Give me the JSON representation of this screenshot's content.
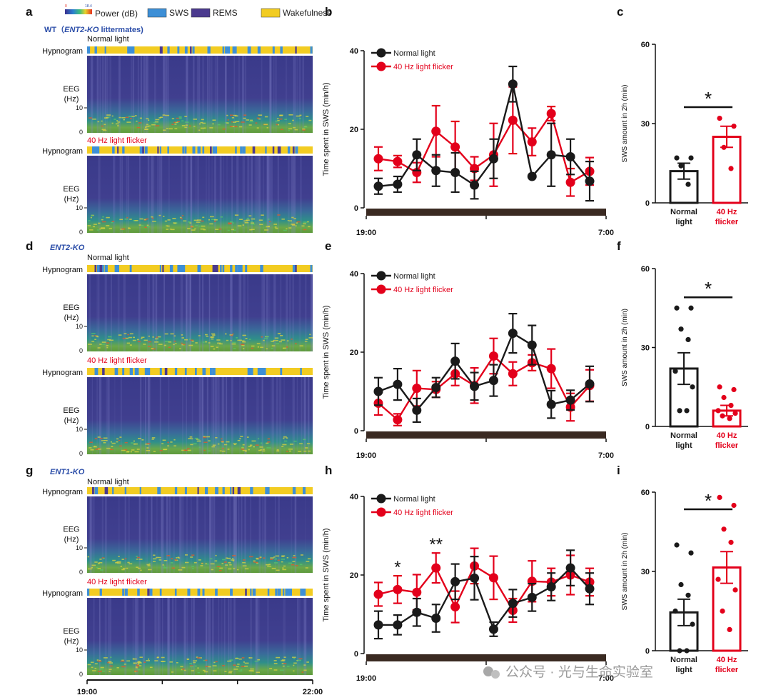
{
  "legend": {
    "power_label": "Power (dB)",
    "scale_min": "0",
    "scale_max": "18.4",
    "states": [
      {
        "name": "SWS",
        "color": "#3d8fd6"
      },
      {
        "name": "REMS",
        "color": "#4b3a8e"
      },
      {
        "name": "Wakefulness",
        "color": "#f2cc22"
      }
    ]
  },
  "colors": {
    "normal": "#1a1a1a",
    "flicker": "#e3001b",
    "group_label": "#2b4da8",
    "spectro_bg": "#3b3b8c",
    "axis_bar": "#3a2a22"
  },
  "row_labels": {
    "hypnogram": "Hypnogram",
    "eeg_line1": "EEG",
    "eeg_line2": "(Hz)",
    "tick_10": "10",
    "tick_0": "0"
  },
  "spectro_time": {
    "start": "19:00",
    "end": "22:00"
  },
  "groups": [
    {
      "panel": "a",
      "title_prefix": "WT（",
      "title_italic": "ENT2-KO",
      "title_suffix": " littermates)",
      "conditions": [
        {
          "label": "Normal light",
          "sws_fraction": 0.22
        },
        {
          "label": "40 Hz light flicker",
          "sws_fraction": 0.35
        }
      ]
    },
    {
      "panel": "d",
      "title_prefix": "",
      "title_italic": "ENT2-KO",
      "title_suffix": "",
      "conditions": [
        {
          "label": "Normal light",
          "sws_fraction": 0.3
        },
        {
          "label": "40 Hz light flicker",
          "sws_fraction": 0.25
        }
      ]
    },
    {
      "panel": "g",
      "title_prefix": "",
      "title_italic": "ENT1-KO",
      "title_suffix": "",
      "conditions": [
        {
          "label": "Normal light",
          "sws_fraction": 0.2
        },
        {
          "label": "40 Hz light flicker",
          "sws_fraction": 0.3
        }
      ]
    }
  ],
  "chart_data": [
    {
      "panel": "b",
      "type": "line",
      "ylabel": "Time spent in SWS (min/h)",
      "ylim": [
        0,
        40
      ],
      "yticks": [
        "0",
        "20",
        "40"
      ],
      "x_start_label": "19:00",
      "x_end_label": "7:00",
      "series": [
        {
          "name": "Normal light",
          "values": [
            5.5,
            6,
            13.5,
            9.5,
            9,
            5.8,
            12.5,
            31.5,
            8,
            13.5,
            13,
            6.8
          ],
          "errors": [
            2,
            2,
            4,
            4,
            5,
            3.5,
            5,
            4.5,
            0,
            8,
            4.5,
            5
          ]
        },
        {
          "name": "40 Hz light flicker",
          "values": [
            12.5,
            11.8,
            9,
            19.5,
            15.5,
            10,
            13.5,
            22.3,
            16.8,
            24,
            6.5,
            9.3
          ],
          "errors": [
            3,
            1.5,
            2.5,
            6.5,
            6.5,
            3,
            8,
            8.5,
            3.5,
            1.8,
            3.5,
            3.5
          ]
        }
      ],
      "annotations": []
    },
    {
      "panel": "c",
      "type": "bar",
      "ylabel": "SWS amount in 2h (min)",
      "ylim": [
        0,
        60
      ],
      "yticks": [
        "0",
        "30",
        "60"
      ],
      "categories": [
        "Normal light",
        "40 Hz flicker"
      ],
      "values": [
        12,
        25
      ],
      "errors": [
        3,
        4
      ],
      "points": [
        [
          17,
          17,
          14,
          7
        ],
        [
          32,
          29,
          21,
          13
        ]
      ],
      "significance": "*"
    },
    {
      "panel": "e",
      "type": "line",
      "ylabel": "Time spent in SWS (min/h)",
      "ylim": [
        0,
        40
      ],
      "yticks": [
        "0",
        "20",
        "40"
      ],
      "x_start_label": "19:00",
      "x_end_label": "7:00",
      "series": [
        {
          "name": "Normal light",
          "values": [
            10,
            11.8,
            5.2,
            11,
            17.7,
            11.3,
            12.8,
            24.8,
            21.8,
            6.7,
            7.8,
            11.9
          ],
          "errors": [
            3.5,
            4,
            3,
            2.5,
            4.5,
            3.5,
            4,
            5,
            5,
            3.5,
            2.5,
            4.5
          ]
        },
        {
          "name": "40 Hz light flicker",
          "values": [
            7,
            2.8,
            10.8,
            10.5,
            14.5,
            11.5,
            19,
            14.5,
            17.3,
            15.8,
            6,
            11.5
          ],
          "errors": [
            3,
            1.5,
            4.5,
            2,
            3,
            4.5,
            4.5,
            3,
            2,
            5,
            3.5,
            4
          ]
        }
      ],
      "annotations": []
    },
    {
      "panel": "f",
      "type": "bar",
      "ylabel": "SWS amount in 2h (min)",
      "ylim": [
        0,
        60
      ],
      "yticks": [
        "0",
        "30",
        "60"
      ],
      "categories": [
        "Normal light",
        "40 Hz flicker"
      ],
      "values": [
        22,
        6
      ],
      "errors": [
        6,
        2
      ],
      "points": [
        [
          45,
          45,
          37,
          33,
          21,
          15,
          6,
          6
        ],
        [
          15,
          14,
          11,
          8,
          6,
          5,
          4,
          3
        ]
      ],
      "significance": "*"
    },
    {
      "panel": "h",
      "type": "line",
      "ylabel": "Time spent in SWS (min/h)",
      "ylim": [
        0,
        40
      ],
      "yticks": [
        "0",
        "20",
        "40"
      ],
      "x_start_label": "19:00",
      "x_end_label": "7:00",
      "series": [
        {
          "name": "Normal light",
          "values": [
            7.3,
            7.3,
            10.5,
            9,
            18.3,
            19.2,
            6.2,
            12.8,
            14.3,
            17,
            21.8,
            16.5
          ],
          "errors": [
            3.5,
            2.5,
            3.5,
            3.5,
            4.5,
            5.5,
            1.8,
            3.5,
            3.5,
            3.5,
            4.5,
            4
          ]
        },
        {
          "name": "40 Hz light flicker",
          "values": [
            15.1,
            16.3,
            15.6,
            21.8,
            11.9,
            22.3,
            19.3,
            11,
            18.4,
            18.2,
            20,
            18.2
          ],
          "errors": [
            3,
            3.5,
            4.5,
            3.8,
            4,
            4.5,
            5.5,
            3,
            5.2,
            3.5,
            5,
            3.5
          ]
        }
      ],
      "annotations": [
        {
          "index": 1,
          "text": "*"
        },
        {
          "index": 3,
          "text": "**"
        }
      ]
    },
    {
      "panel": "i",
      "type": "bar",
      "ylabel": "SWS amount in 2h (min)",
      "ylim": [
        0,
        60
      ],
      "yticks": [
        "0",
        "30",
        "60"
      ],
      "categories": [
        "Normal light",
        "40 Hz flicker"
      ],
      "values": [
        14.5,
        31.5
      ],
      "errors": [
        5,
        6
      ],
      "points": [
        [
          40,
          37,
          25,
          21,
          15,
          10,
          0,
          0
        ],
        [
          58,
          55,
          46,
          41,
          27,
          23,
          15,
          8
        ]
      ],
      "significance": "*"
    }
  ],
  "watermark": "公众号 · 光与生命实验室"
}
